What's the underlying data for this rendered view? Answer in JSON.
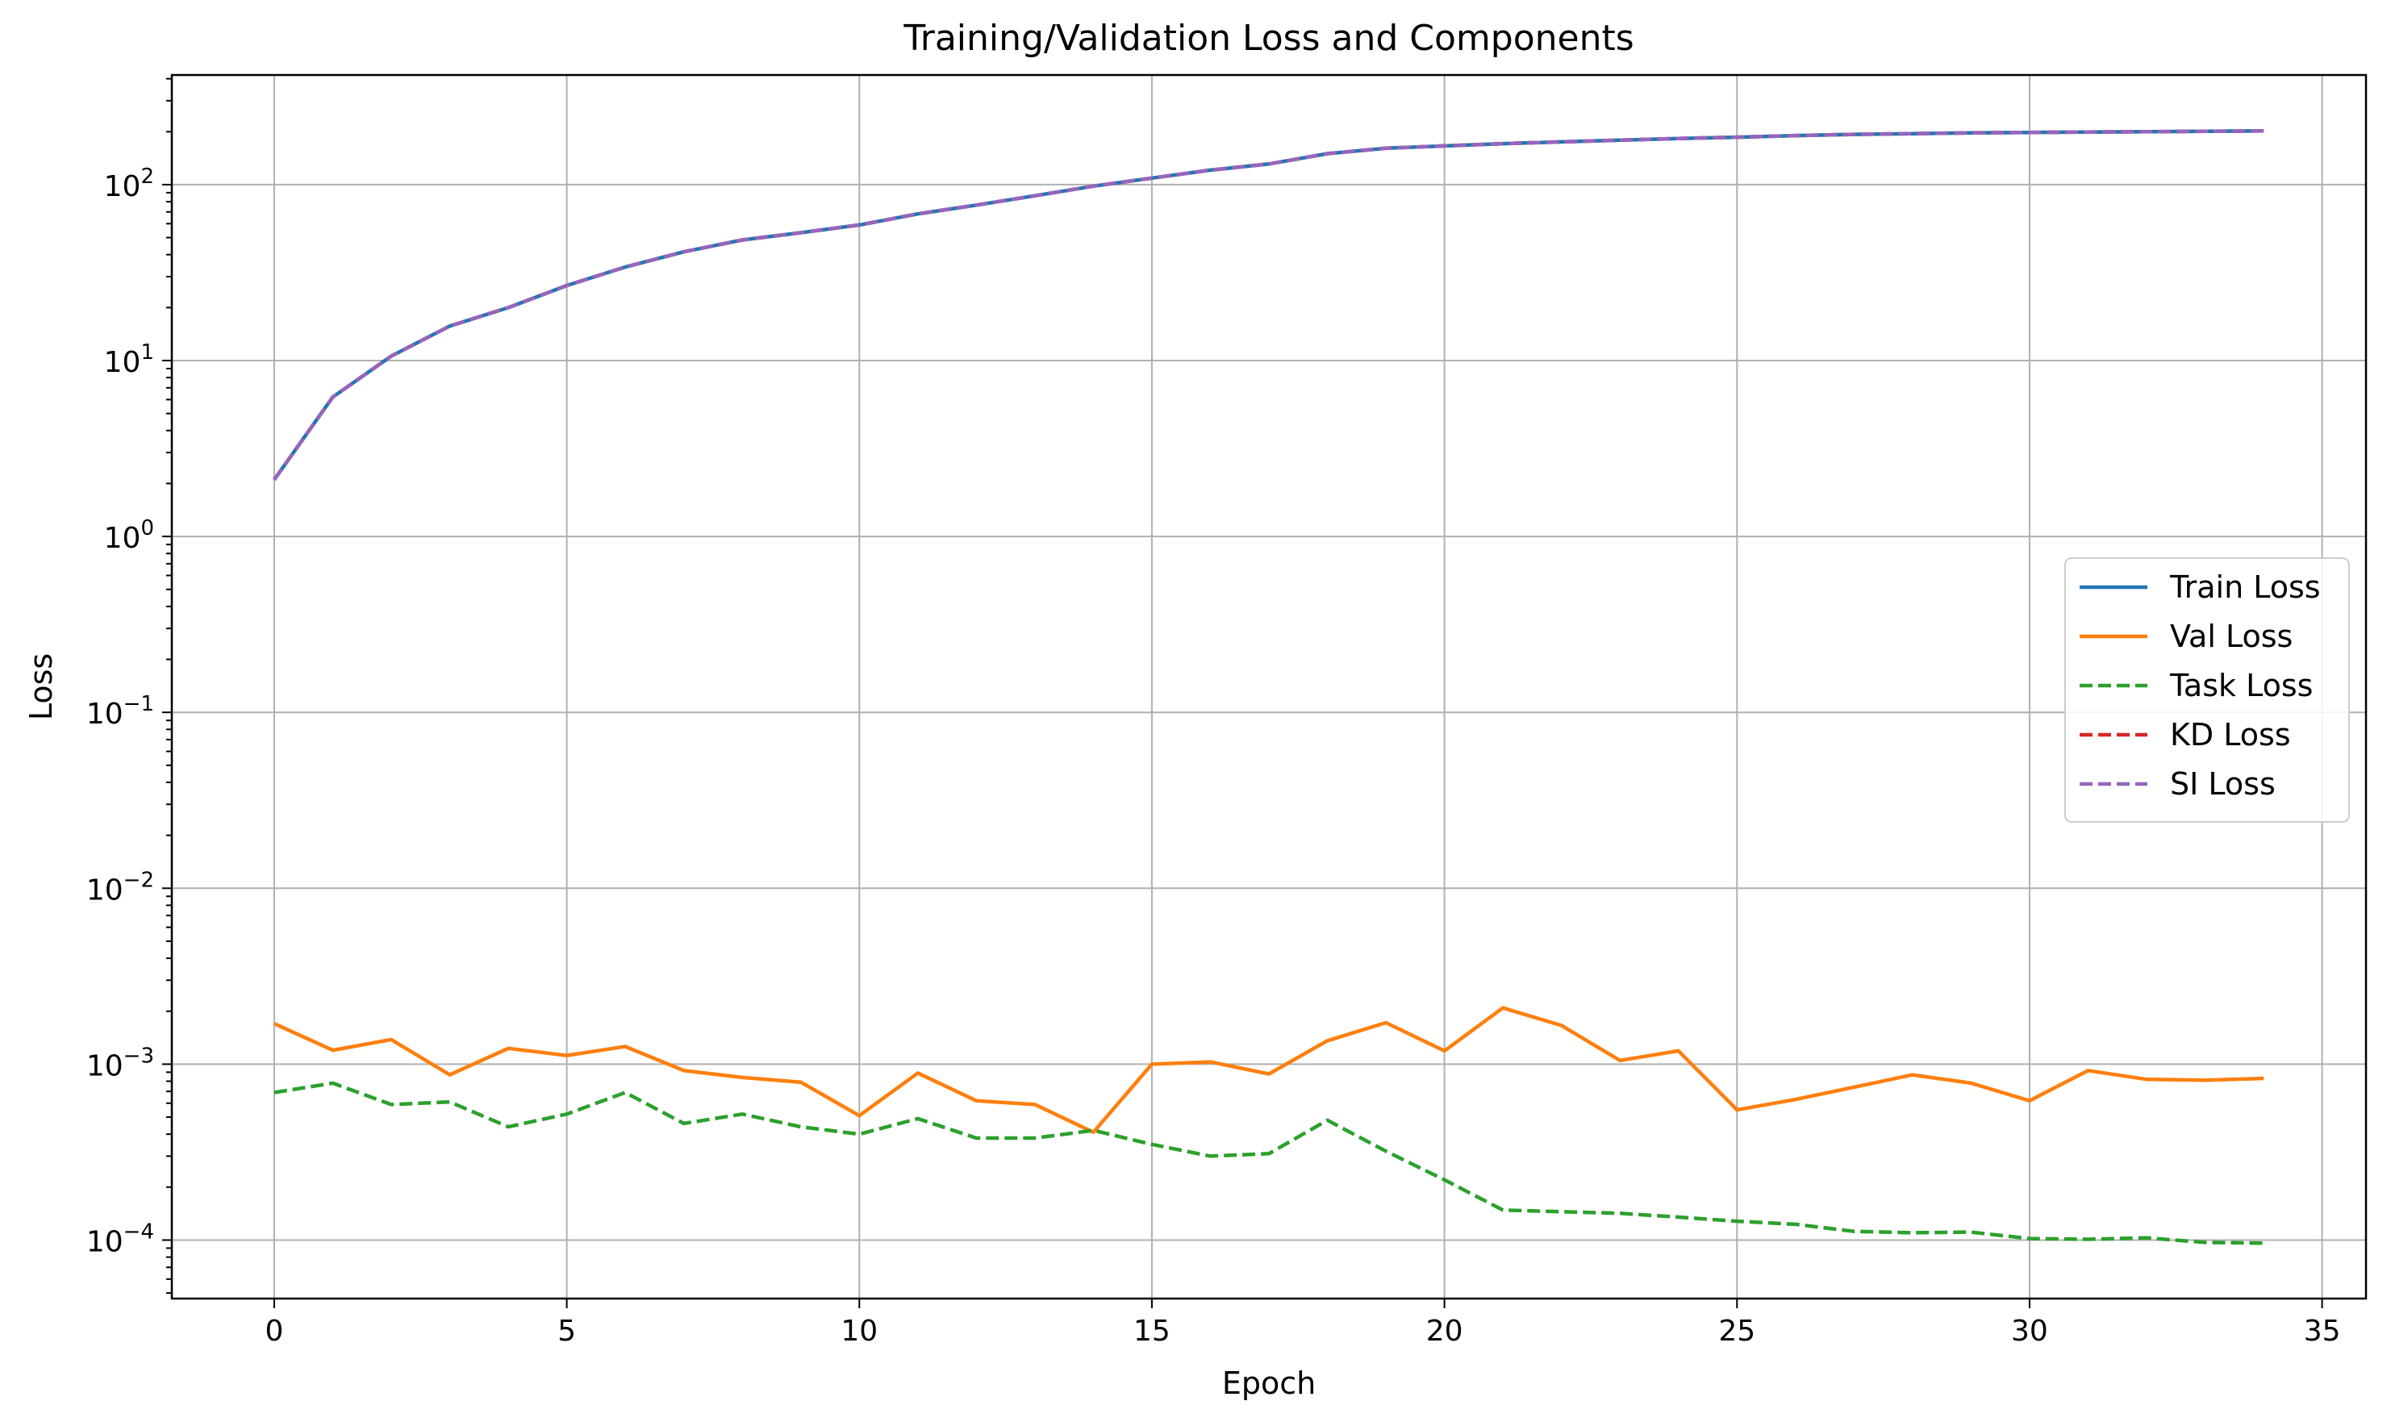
{
  "chart_data": {
    "type": "line",
    "title": "Training/Validation Loss and Components",
    "xlabel": "Epoch",
    "ylabel": "Loss",
    "yscale": "log",
    "grid": true,
    "legend_position": "center-right",
    "xlim": [
      -1.75,
      35.75
    ],
    "ylim": [
      4.65e-05,
      420
    ],
    "x_ticks": [
      0,
      5,
      10,
      15,
      20,
      25,
      30,
      35
    ],
    "x_tick_labels": [
      "0",
      "5",
      "10",
      "15",
      "20",
      "25",
      "30",
      "35"
    ],
    "y_ticks": [
      0.0001,
      0.001,
      0.01,
      0.1,
      1,
      10,
      100
    ],
    "y_tick_labels": [
      {
        "base": "10",
        "exp": "−4"
      },
      {
        "base": "10",
        "exp": "−3"
      },
      {
        "base": "10",
        "exp": "−2"
      },
      {
        "base": "10",
        "exp": "−1"
      },
      {
        "base": "10",
        "exp": "0"
      },
      {
        "base": "10",
        "exp": "1"
      },
      {
        "base": "10",
        "exp": "2"
      }
    ],
    "x": [
      0,
      1,
      2,
      3,
      4,
      5,
      6,
      7,
      8,
      9,
      10,
      11,
      12,
      13,
      14,
      15,
      16,
      17,
      18,
      19,
      20,
      21,
      22,
      23,
      24,
      25,
      26,
      27,
      28,
      29,
      30,
      31,
      32,
      33,
      34
    ],
    "series": [
      {
        "name": "Train Loss",
        "color": "#1f77b4",
        "dash": "solid",
        "values": [
          2.1,
          6.2,
          10.6,
          15.7,
          20,
          26.7,
          34,
          41.5,
          48.5,
          53.3,
          59,
          68.2,
          76.5,
          86.5,
          98,
          109,
          121,
          131,
          150,
          161,
          166,
          171,
          175,
          179,
          183,
          186,
          190,
          193,
          195,
          197,
          198,
          199,
          200,
          201,
          202
        ]
      },
      {
        "name": "Val Loss",
        "color": "#ff7f0e",
        "dash": "solid",
        "values": [
          0.0017,
          0.0012,
          0.00138,
          0.00087,
          0.00123,
          0.00112,
          0.00126,
          0.00092,
          0.00084,
          0.00079,
          0.00051,
          0.00089,
          0.00062,
          0.00059,
          0.00041,
          0.001,
          0.00103,
          0.00088,
          0.00136,
          0.00172,
          0.00119,
          0.00209,
          0.00166,
          0.00105,
          0.00119,
          0.00055,
          0.00063,
          0.00074,
          0.00087,
          0.00078,
          0.00062,
          0.00092,
          0.00082,
          0.00081,
          0.00083
        ]
      },
      {
        "name": "Task Loss",
        "color": "#2ca02c",
        "dash": "dashed",
        "values": [
          0.00069,
          0.00078,
          0.00059,
          0.00061,
          0.00044,
          0.00052,
          0.00069,
          0.00046,
          0.00052,
          0.00044,
          0.0004,
          0.00049,
          0.00038,
          0.00038,
          0.00042,
          0.00035,
          0.0003,
          0.00031,
          0.00048,
          0.00032,
          0.00022,
          0.000148,
          0.000145,
          0.000142,
          0.000135,
          0.000128,
          0.000123,
          0.000112,
          0.00011,
          0.000111,
          0.000102,
          0.000101,
          0.000103,
          9.7e-05,
          9.6e-05
        ]
      },
      {
        "name": "KD Loss",
        "color": "#d62728",
        "dash": "dashed",
        "values": [
          2.1,
          6.2,
          10.6,
          15.7,
          20,
          26.7,
          34,
          41.5,
          48.5,
          53.3,
          59,
          68.2,
          76.5,
          86.5,
          98,
          109,
          121,
          131,
          150,
          161,
          166,
          171,
          175,
          179,
          183,
          186,
          190,
          193,
          195,
          197,
          198,
          199,
          200,
          201,
          202
        ]
      },
      {
        "name": "SI Loss",
        "color": "#9467bd",
        "dash": "dashed",
        "values": [
          2.1,
          6.2,
          10.6,
          15.7,
          20,
          26.7,
          34,
          41.5,
          48.5,
          53.3,
          59,
          68.2,
          76.5,
          86.5,
          98,
          109,
          121,
          131,
          150,
          161,
          166,
          171,
          175,
          179,
          183,
          186,
          190,
          193,
          195,
          197,
          198,
          199,
          200,
          201,
          202
        ]
      }
    ]
  }
}
